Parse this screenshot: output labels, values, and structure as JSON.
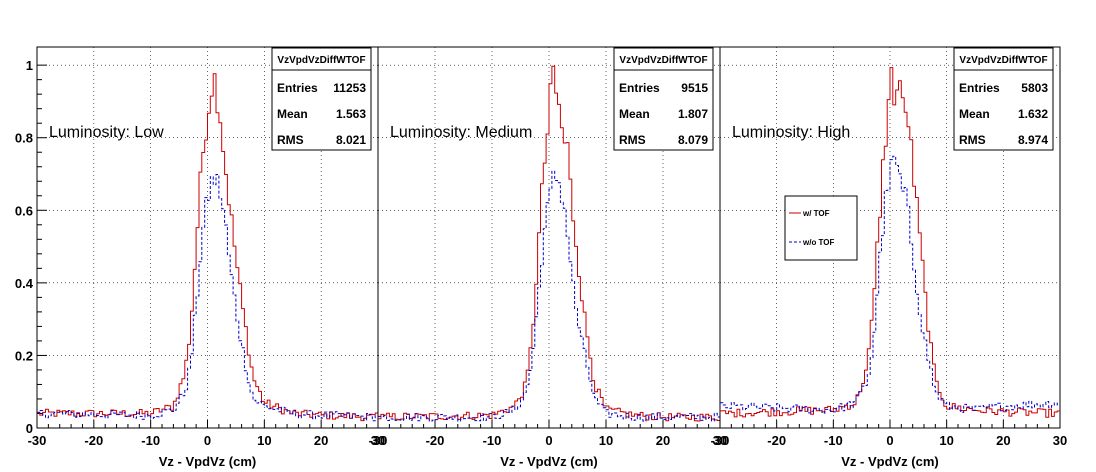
{
  "chart_data": {
    "type": "line",
    "xlabel": "Vz - VpdVz (cm)",
    "xlim": [
      -30,
      30
    ],
    "ylim": [
      0,
      1.05
    ],
    "x_ticks": [
      "-30",
      "-20",
      "-10",
      "0",
      "10",
      "20",
      "30"
    ],
    "y_ticks": [
      "0",
      "0.2",
      "0.4",
      "0.6",
      "0.8",
      "1"
    ],
    "grid": true,
    "legend": {
      "placement": "inside-panel-3-left",
      "entries": [
        {
          "label": "w/ TOF",
          "color": "#cc0000",
          "style": "solid"
        },
        {
          "label": "w/o TOF",
          "color": "#0000cc",
          "style": "dashed"
        }
      ]
    },
    "panels": [
      {
        "label": "Luminosity: Low",
        "stats": {
          "title": "VzVpdVzDiffWTOF",
          "rows": [
            {
              "k": "Entries",
              "v": "11253"
            },
            {
              "k": "Mean",
              "v": "1.563"
            },
            {
              "k": "RMS",
              "v": "8.021"
            }
          ]
        },
        "series": [
          {
            "key": "w_tof",
            "color": "#cc0000",
            "x": [
              -30,
              -10,
              -6,
              -4,
              -3,
              -2,
              -1,
              0,
              0.5,
              1,
              1.5,
              2,
              3,
              4,
              5,
              6,
              8,
              10,
              15,
              20,
              30
            ],
            "y": [
              0.04,
              0.04,
              0.06,
              0.15,
              0.27,
              0.5,
              0.73,
              0.87,
              0.91,
              0.99,
              0.93,
              0.9,
              0.74,
              0.6,
              0.47,
              0.35,
              0.14,
              0.07,
              0.04,
              0.035,
              0.03
            ]
          },
          {
            "key": "wo_tof",
            "color": "#0000cc",
            "x": [
              -30,
              -10,
              -6,
              -4,
              -3,
              -2,
              -1,
              0,
              1,
              2,
              3,
              4,
              5,
              6,
              8,
              10,
              15,
              20,
              30
            ],
            "y": [
              0.04,
              0.035,
              0.05,
              0.1,
              0.17,
              0.33,
              0.52,
              0.63,
              0.69,
              0.67,
              0.58,
              0.44,
              0.33,
              0.23,
              0.08,
              0.06,
              0.04,
              0.035,
              0.03
            ]
          }
        ]
      },
      {
        "label": "Luminosity: Medium",
        "stats": {
          "title": "VzVpdVzDiffWTOF",
          "rows": [
            {
              "k": "Entries",
              "v": "9515"
            },
            {
              "k": "Mean",
              "v": "1.807"
            },
            {
              "k": "RMS",
              "v": "8.079"
            }
          ]
        },
        "series": [
          {
            "key": "w_tof",
            "color": "#cc0000",
            "x": [
              -30,
              -10,
              -6,
              -4,
              -3,
              -2,
              -1,
              0,
              0.5,
              1,
              1.5,
              2,
              2.5,
              3,
              4,
              5,
              6,
              8,
              10,
              15,
              20,
              30
            ],
            "y": [
              0.03,
              0.035,
              0.06,
              0.12,
              0.24,
              0.47,
              0.7,
              0.85,
              0.96,
              1.0,
              0.85,
              0.9,
              0.75,
              0.82,
              0.62,
              0.48,
              0.33,
              0.12,
              0.05,
              0.035,
              0.03,
              0.03
            ]
          },
          {
            "key": "wo_tof",
            "color": "#0000cc",
            "x": [
              -30,
              -10,
              -6,
              -4,
              -3,
              -2,
              -1,
              0,
              1,
              2,
              3,
              4,
              5,
              6,
              8,
              10,
              15,
              20,
              30
            ],
            "y": [
              0.03,
              0.03,
              0.05,
              0.1,
              0.18,
              0.34,
              0.52,
              0.62,
              0.7,
              0.67,
              0.58,
              0.42,
              0.3,
              0.22,
              0.08,
              0.04,
              0.03,
              0.03,
              0.03
            ]
          }
        ]
      },
      {
        "label": "Luminosity: High",
        "stats": {
          "title": "VzVpdVzDiffWTOF",
          "rows": [
            {
              "k": "Entries",
              "v": "5803"
            },
            {
              "k": "Mean",
              "v": "1.632"
            },
            {
              "k": "RMS",
              "v": "8.974"
            }
          ]
        },
        "series": [
          {
            "key": "w_tof",
            "color": "#cc0000",
            "x": [
              -30,
              -10,
              -6,
              -4,
              -3,
              -2,
              -1,
              0,
              0.5,
              1,
              1.5,
              2,
              2.5,
              3,
              4,
              5,
              6,
              7,
              8,
              10,
              15,
              20,
              30
            ],
            "y": [
              0.04,
              0.05,
              0.07,
              0.17,
              0.32,
              0.55,
              0.77,
              0.93,
              1.0,
              0.85,
              1.0,
              0.93,
              0.82,
              0.9,
              0.72,
              0.57,
              0.4,
              0.25,
              0.13,
              0.06,
              0.05,
              0.045,
              0.04
            ]
          },
          {
            "key": "wo_tof",
            "color": "#0000cc",
            "x": [
              -30,
              -10,
              -6,
              -4,
              -3,
              -2,
              -1,
              0,
              1,
              2,
              3,
              4,
              5,
              6,
              8,
              10,
              15,
              20,
              30
            ],
            "y": [
              0.06,
              0.05,
              0.07,
              0.13,
              0.22,
              0.42,
              0.6,
              0.7,
              0.74,
              0.66,
              0.62,
              0.48,
              0.36,
              0.25,
              0.1,
              0.06,
              0.05,
              0.06,
              0.07
            ]
          }
        ]
      }
    ]
  }
}
